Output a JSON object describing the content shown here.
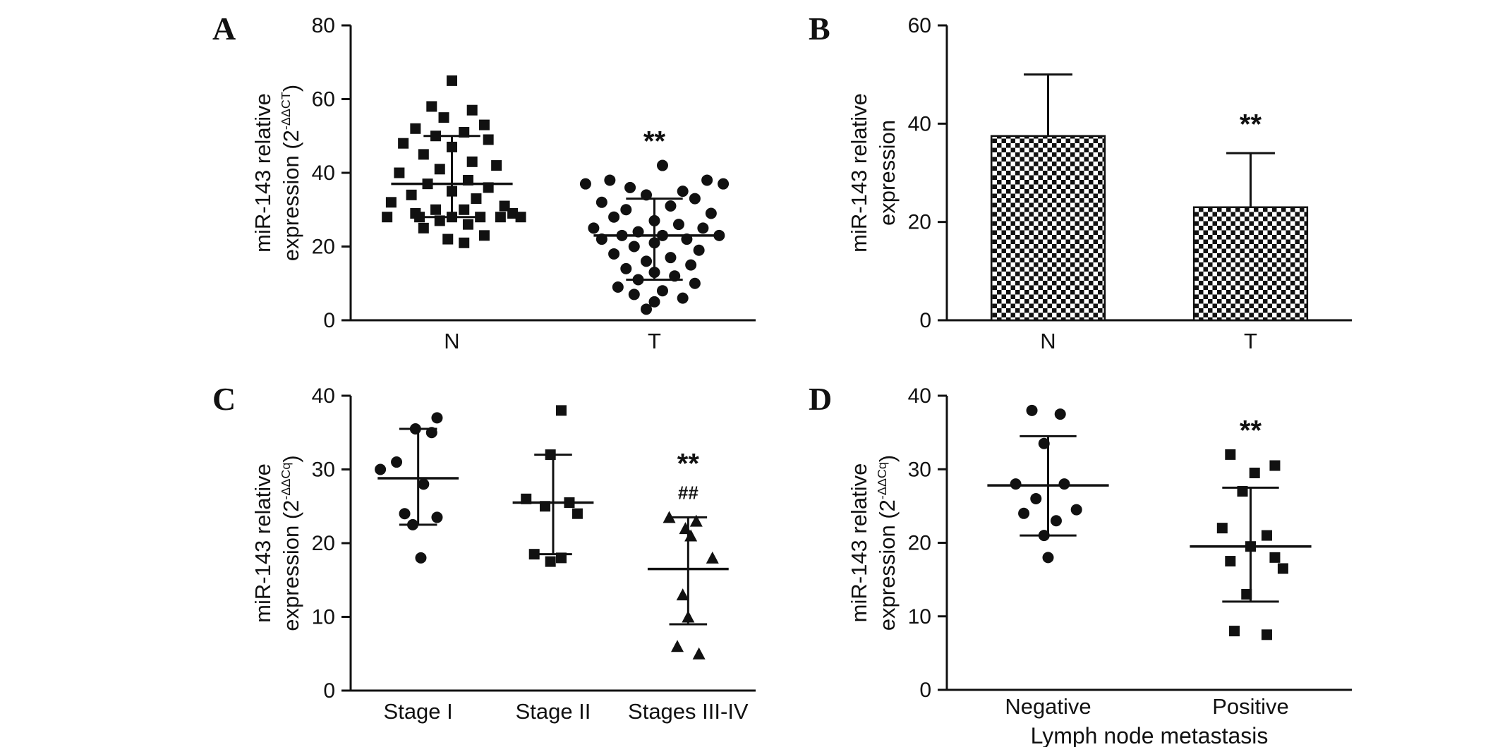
{
  "figure": {
    "background": "#ffffff",
    "ink": "#111111",
    "panels": [
      {
        "id": "A",
        "letter": "A"
      },
      {
        "id": "B",
        "letter": "B"
      },
      {
        "id": "C",
        "letter": "C"
      },
      {
        "id": "D",
        "letter": "D"
      }
    ]
  },
  "chart_data": [
    {
      "panel": "A",
      "type": "scatter",
      "ylabel_lines": [
        "miR-143 relative",
        "expression (2^{-ΔΔCT})"
      ],
      "ylim": [
        0,
        80
      ],
      "yticks": [
        0,
        20,
        40,
        60,
        80
      ],
      "categories": [
        "N",
        "T"
      ],
      "series": [
        {
          "name": "N",
          "marker": "square",
          "mean": 37,
          "sd_low": 28,
          "sd_high": 50,
          "points": [
            [
              0.0,
              65
            ],
            [
              -0.1,
              58
            ],
            [
              0.1,
              57
            ],
            [
              -0.04,
              55
            ],
            [
              0.16,
              53
            ],
            [
              -0.18,
              52
            ],
            [
              0.06,
              51
            ],
            [
              -0.08,
              50
            ],
            [
              0.18,
              49
            ],
            [
              -0.24,
              48
            ],
            [
              0.0,
              47
            ],
            [
              -0.14,
              45
            ],
            [
              0.1,
              43
            ],
            [
              0.22,
              42
            ],
            [
              -0.06,
              41
            ],
            [
              -0.26,
              40
            ],
            [
              0.08,
              38
            ],
            [
              -0.12,
              37
            ],
            [
              0.18,
              36
            ],
            [
              0.0,
              35
            ],
            [
              -0.2,
              34
            ],
            [
              0.12,
              33
            ],
            [
              -0.3,
              32
            ],
            [
              0.26,
              31
            ],
            [
              -0.08,
              30
            ],
            [
              0.06,
              30
            ],
            [
              -0.18,
              29
            ],
            [
              0.3,
              29
            ],
            [
              -0.32,
              28
            ],
            [
              -0.16,
              28
            ],
            [
              0.0,
              28
            ],
            [
              0.14,
              28
            ],
            [
              0.24,
              28
            ],
            [
              0.34,
              28
            ],
            [
              -0.06,
              27
            ],
            [
              0.08,
              26
            ],
            [
              -0.14,
              25
            ],
            [
              0.16,
              23
            ],
            [
              -0.02,
              22
            ],
            [
              0.06,
              21
            ]
          ]
        },
        {
          "name": "T",
          "marker": "circle",
          "mean": 23,
          "sd_low": 11,
          "sd_high": 33,
          "points": [
            [
              0.04,
              42
            ],
            [
              -0.22,
              38
            ],
            [
              0.26,
              38
            ],
            [
              -0.34,
              37
            ],
            [
              0.34,
              37
            ],
            [
              -0.12,
              36
            ],
            [
              0.14,
              35
            ],
            [
              -0.04,
              34
            ],
            [
              0.2,
              33
            ],
            [
              -0.26,
              32
            ],
            [
              0.08,
              31
            ],
            [
              -0.14,
              30
            ],
            [
              0.28,
              29
            ],
            [
              -0.2,
              28
            ],
            [
              0.0,
              27
            ],
            [
              0.12,
              26
            ],
            [
              -0.3,
              25
            ],
            [
              0.24,
              25
            ],
            [
              -0.08,
              24
            ],
            [
              0.04,
              23
            ],
            [
              -0.16,
              23
            ],
            [
              0.32,
              23
            ],
            [
              -0.26,
              22
            ],
            [
              0.16,
              22
            ],
            [
              0.0,
              21
            ],
            [
              -0.1,
              20
            ],
            [
              0.22,
              19
            ],
            [
              -0.2,
              18
            ],
            [
              0.08,
              17
            ],
            [
              -0.04,
              16
            ],
            [
              0.18,
              15
            ],
            [
              -0.14,
              14
            ],
            [
              0.0,
              13
            ],
            [
              0.1,
              12
            ],
            [
              -0.08,
              11
            ],
            [
              0.2,
              10
            ],
            [
              -0.18,
              9
            ],
            [
              0.04,
              8
            ],
            [
              -0.1,
              7
            ],
            [
              0.14,
              6
            ],
            [
              0.0,
              5
            ],
            [
              -0.04,
              3
            ]
          ]
        }
      ],
      "annotations": [
        {
          "cat": "T",
          "text": "**",
          "y": 46,
          "size": 40
        }
      ]
    },
    {
      "panel": "B",
      "type": "bar",
      "ylabel_lines": [
        "miR-143 relative",
        "expression"
      ],
      "ylim": [
        0,
        60
      ],
      "yticks": [
        0,
        20,
        40,
        60
      ],
      "categories": [
        "N",
        "T"
      ],
      "values": [
        37.5,
        23
      ],
      "err_high": [
        50,
        34
      ],
      "bar_fill": "checker",
      "annotations": [
        {
          "cat": "T",
          "text": "**",
          "y": 38,
          "size": 40
        }
      ]
    },
    {
      "panel": "C",
      "type": "scatter",
      "ylabel_lines": [
        "miR-143 relative",
        "expression (2^{-ΔΔCq})"
      ],
      "ylim": [
        0,
        40
      ],
      "yticks": [
        0,
        10,
        20,
        30,
        40
      ],
      "categories": [
        "Stage I",
        "Stage II",
        "Stages III-IV"
      ],
      "series": [
        {
          "name": "Stage I",
          "marker": "circle",
          "mean": 28.8,
          "sd_low": 22.5,
          "sd_high": 35.5,
          "points": [
            [
              0.14,
              37
            ],
            [
              -0.02,
              35.5
            ],
            [
              0.1,
              35
            ],
            [
              -0.16,
              31
            ],
            [
              -0.28,
              30
            ],
            [
              0.04,
              28
            ],
            [
              -0.1,
              24
            ],
            [
              0.14,
              23.5
            ],
            [
              -0.04,
              22.5
            ],
            [
              0.02,
              18
            ]
          ]
        },
        {
          "name": "Stage II",
          "marker": "square",
          "mean": 25.5,
          "sd_low": 18.5,
          "sd_high": 32,
          "points": [
            [
              0.06,
              38
            ],
            [
              -0.02,
              32
            ],
            [
              -0.2,
              26
            ],
            [
              0.12,
              25.5
            ],
            [
              -0.06,
              25
            ],
            [
              0.18,
              24
            ],
            [
              -0.14,
              18.5
            ],
            [
              0.06,
              18
            ],
            [
              -0.02,
              17.5
            ]
          ]
        },
        {
          "name": "Stages III-IV",
          "marker": "triangle",
          "mean": 16.5,
          "sd_low": 9,
          "sd_high": 23.5,
          "points": [
            [
              -0.14,
              23.5
            ],
            [
              0.06,
              23
            ],
            [
              -0.02,
              22
            ],
            [
              0.02,
              21
            ],
            [
              0.18,
              18
            ],
            [
              -0.04,
              13
            ],
            [
              0.0,
              10
            ],
            [
              -0.08,
              6
            ],
            [
              0.08,
              5
            ]
          ]
        }
      ],
      "annotations": [
        {
          "cat": "Stages III-IV",
          "text": "**",
          "y": 29.5,
          "size": 40
        },
        {
          "cat": "Stages III-IV",
          "text": "##",
          "y": 26,
          "size": 26
        }
      ]
    },
    {
      "panel": "D",
      "type": "scatter",
      "ylabel_lines": [
        "miR-143 relative",
        "expression (2^{-ΔΔCq})"
      ],
      "xlabel": "Lymph node metastasis",
      "ylim": [
        0,
        40
      ],
      "yticks": [
        0,
        10,
        20,
        30,
        40
      ],
      "categories": [
        "Negative",
        "Positive"
      ],
      "series": [
        {
          "name": "Negative",
          "marker": "circle",
          "mean": 27.8,
          "sd_low": 21,
          "sd_high": 34.5,
          "points": [
            [
              -0.08,
              38
            ],
            [
              0.06,
              37.5
            ],
            [
              -0.02,
              33.5
            ],
            [
              -0.16,
              28
            ],
            [
              0.08,
              28
            ],
            [
              -0.06,
              26
            ],
            [
              0.14,
              24.5
            ],
            [
              -0.12,
              24
            ],
            [
              0.04,
              23
            ],
            [
              -0.02,
              21
            ],
            [
              0.0,
              18
            ]
          ]
        },
        {
          "name": "Positive",
          "marker": "square",
          "mean": 19.5,
          "sd_low": 12,
          "sd_high": 27.5,
          "points": [
            [
              -0.1,
              32
            ],
            [
              0.12,
              30.5
            ],
            [
              0.02,
              29.5
            ],
            [
              -0.04,
              27
            ],
            [
              -0.14,
              22
            ],
            [
              0.08,
              21
            ],
            [
              0.0,
              19.5
            ],
            [
              0.12,
              18
            ],
            [
              -0.1,
              17.5
            ],
            [
              0.16,
              16.5
            ],
            [
              -0.02,
              13
            ],
            [
              -0.08,
              8
            ],
            [
              0.08,
              7.5
            ]
          ]
        }
      ],
      "annotations": [
        {
          "cat": "Positive",
          "text": "**",
          "y": 34,
          "size": 40
        }
      ]
    }
  ]
}
